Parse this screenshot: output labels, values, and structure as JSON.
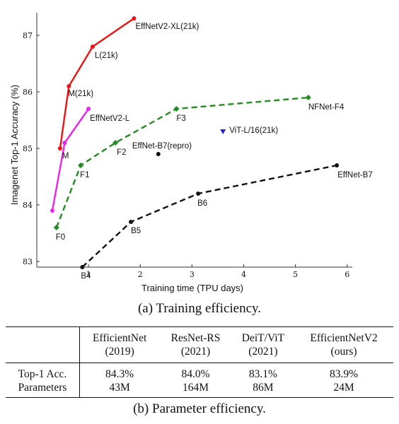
{
  "chart_data": {
    "type": "line",
    "xlabel": "Training time (TPU days)",
    "ylabel": "Imagenet Top-1 Accuracy (%)",
    "xlim": [
      0,
      6.1
    ],
    "ylim": [
      82.9,
      87.4
    ],
    "xticks": [
      1,
      2,
      3,
      4,
      5,
      6
    ],
    "yticks": [
      83,
      84,
      85,
      86,
      87
    ],
    "grid": false,
    "series": [
      {
        "name": "EffNetV2-XL(21k) curve",
        "color": "#ee1111",
        "dash": "solid",
        "marker": "circle",
        "points": [
          {
            "x": 0.45,
            "y": 85.0,
            "label": "M"
          },
          {
            "x": 0.62,
            "y": 86.1,
            "label": "M(21k)"
          },
          {
            "x": 1.08,
            "y": 86.8,
            "label": "L(21k)"
          },
          {
            "x": 1.88,
            "y": 87.3,
            "label": "EffNetV2-XL(21k)"
          }
        ]
      },
      {
        "name": "EffNetV2-L curve",
        "color": "#ee22ee",
        "dash": "solid",
        "marker": "circle",
        "points": [
          {
            "x": 0.3,
            "y": 83.9,
            "label": ""
          },
          {
            "x": 0.54,
            "y": 85.1,
            "label": ""
          },
          {
            "x": 1.0,
            "y": 85.7,
            "label": "EffNetV2-L"
          }
        ]
      },
      {
        "name": "NFNet-F4 curve",
        "color": "#228b22",
        "dash": "dashed",
        "marker": "diamond",
        "points": [
          {
            "x": 0.38,
            "y": 83.6,
            "label": "F0"
          },
          {
            "x": 0.85,
            "y": 84.7,
            "label": "F1"
          },
          {
            "x": 1.52,
            "y": 85.1,
            "label": "F2"
          },
          {
            "x": 2.7,
            "y": 85.7,
            "label": "F3"
          },
          {
            "x": 5.25,
            "y": 85.9,
            "label": "NFNet-F4"
          }
        ]
      },
      {
        "name": "EffNet-B7 curve",
        "color": "#111111",
        "dash": "dashed",
        "marker": "circle",
        "points": [
          {
            "x": 0.88,
            "y": 82.9,
            "label": "B4"
          },
          {
            "x": 1.82,
            "y": 83.7,
            "label": "B5"
          },
          {
            "x": 3.12,
            "y": 84.2,
            "label": "B6"
          },
          {
            "x": 5.8,
            "y": 84.7,
            "label": "EffNet-B7"
          }
        ]
      },
      {
        "name": "EffNet-B7(repro) point",
        "color": "#111111",
        "dash": "none",
        "marker": "circle",
        "points": [
          {
            "x": 2.35,
            "y": 84.9,
            "label": "EffNet-B7(repro)"
          }
        ]
      },
      {
        "name": "ViT-L/16(21k) point",
        "color": "#2222dd",
        "dash": "none",
        "marker": "triangle-down",
        "points": [
          {
            "x": 3.6,
            "y": 85.3,
            "label": "ViT-L/16(21k)"
          }
        ]
      }
    ]
  },
  "caption_a": "(a) Training efficiency.",
  "caption_b": "(b) Parameter efficiency.",
  "table": {
    "columns": [
      {
        "name": "EfficientNet",
        "year": "(2019)"
      },
      {
        "name": "ResNet-RS",
        "year": "(2021)"
      },
      {
        "name": "DeiT/ViT",
        "year": "(2021)"
      },
      {
        "name": "EfficientNetV2",
        "year": "(ours)"
      }
    ],
    "rows": [
      {
        "label": "Top-1 Acc.",
        "values": [
          "84.3%",
          "84.0%",
          "83.1%",
          "83.9%"
        ]
      },
      {
        "label": "Parameters",
        "values": [
          "43M",
          "164M",
          "86M",
          "24M"
        ]
      }
    ]
  }
}
